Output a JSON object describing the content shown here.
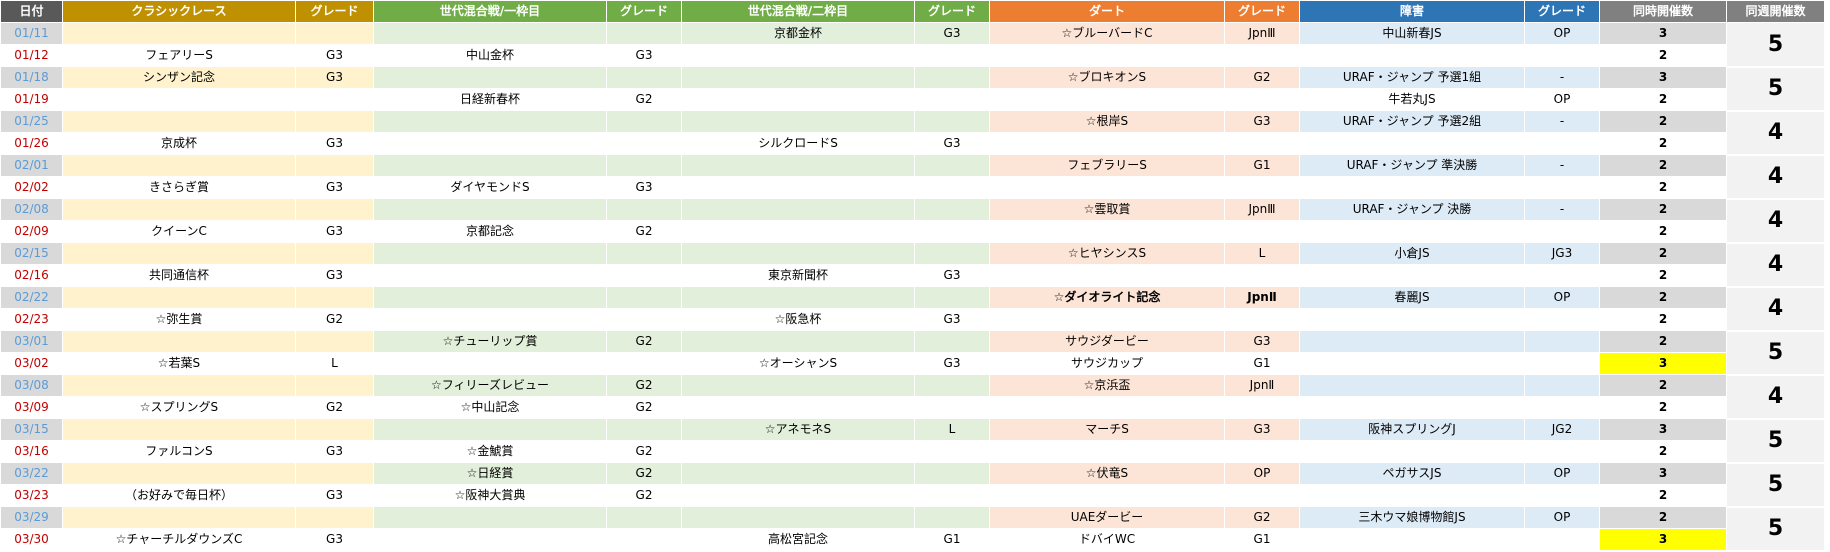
{
  "headers": [
    "日付",
    "クラシックレース",
    "グレード",
    "世代混合戦/一枠目",
    "グレード",
    "世代混合戦/二枠目",
    "グレード",
    "ダート",
    "グレード",
    "障害",
    "グレード",
    "同時開催数",
    "同週開催数"
  ],
  "colors": {
    "header_date": "#595959",
    "header_classic": "#bf9000",
    "header_mixed": "#70ad47",
    "header_dirt": "#ed7d31",
    "header_jump": "#2e75b6",
    "header_count": "#808080",
    "date_sat": "#5b9bd5",
    "date_sun": "#c00000",
    "odd_classic": "#fff2cc",
    "odd_mixed": "#e2efda",
    "odd_dirt": "#fce4d6",
    "odd_jump": "#ddebf7",
    "odd_count": "#d9d9d9",
    "highlight": "#ffff00"
  },
  "rows": [
    {
      "date": "01/11",
      "c1": "",
      "g1": "",
      "c2": "",
      "g2": "",
      "c3": "京都金杯",
      "g3": "G3",
      "c4": "☆ブルーバードC",
      "g4": "JpnⅢ",
      "c5": "中山新春JS",
      "g5": "OP",
      "n": "3"
    },
    {
      "date": "01/12",
      "c1": "フェアリーS",
      "g1": "G3",
      "c2": "中山金杯",
      "g2": "G3",
      "c3": "",
      "g3": "",
      "c4": "",
      "g4": "",
      "c5": "",
      "g5": "",
      "n": "2"
    },
    {
      "date": "01/18",
      "c1": "シンザン記念",
      "g1": "G3",
      "c2": "",
      "g2": "",
      "c3": "",
      "g3": "",
      "c4": "☆ブロキオンS",
      "g4": "G2",
      "c5": "URAF・ジャンプ 予選1組",
      "g5": "-",
      "n": "3"
    },
    {
      "date": "01/19",
      "c1": "",
      "g1": "",
      "c2": "日経新春杯",
      "g2": "G2",
      "c3": "",
      "g3": "",
      "c4": "",
      "g4": "",
      "c5": "牛若丸JS",
      "g5": "OP",
      "n": "2"
    },
    {
      "date": "01/25",
      "c1": "",
      "g1": "",
      "c2": "",
      "g2": "",
      "c3": "",
      "g3": "",
      "c4": "☆根岸S",
      "g4": "G3",
      "c5": "URAF・ジャンプ 予選2組",
      "g5": "-",
      "n": "2"
    },
    {
      "date": "01/26",
      "c1": "京成杯",
      "g1": "G3",
      "c2": "",
      "g2": "",
      "c3": "シルクロードS",
      "g3": "G3",
      "c4": "",
      "g4": "",
      "c5": "",
      "g5": "",
      "n": "2"
    },
    {
      "date": "02/01",
      "c1": "",
      "g1": "",
      "c2": "",
      "g2": "",
      "c3": "",
      "g3": "",
      "c4": "フェブラリーS",
      "g4": "G1",
      "c5": "URAF・ジャンプ 準決勝",
      "g5": "-",
      "n": "2"
    },
    {
      "date": "02/02",
      "c1": "きさらぎ賞",
      "g1": "G3",
      "c2": "ダイヤモンドS",
      "g2": "G3",
      "c3": "",
      "g3": "",
      "c4": "",
      "g4": "",
      "c5": "",
      "g5": "",
      "n": "2"
    },
    {
      "date": "02/08",
      "c1": "",
      "g1": "",
      "c2": "",
      "g2": "",
      "c3": "",
      "g3": "",
      "c4": "☆雲取賞",
      "g4": "JpnⅢ",
      "c5": "URAF・ジャンプ 決勝",
      "g5": "-",
      "n": "2"
    },
    {
      "date": "02/09",
      "c1": "クイーンC",
      "g1": "G3",
      "c2": "京都記念",
      "g2": "G2",
      "c3": "",
      "g3": "",
      "c4": "",
      "g4": "",
      "c5": "",
      "g5": "",
      "n": "2"
    },
    {
      "date": "02/15",
      "c1": "",
      "g1": "",
      "c2": "",
      "g2": "",
      "c3": "",
      "g3": "",
      "c4": "☆ヒヤシンスS",
      "g4": "L",
      "c5": "小倉JS",
      "g5": "JG3",
      "n": "2"
    },
    {
      "date": "02/16",
      "c1": "共同通信杯",
      "g1": "G3",
      "c2": "",
      "g2": "",
      "c3": "東京新聞杯",
      "g3": "G3",
      "c4": "",
      "g4": "",
      "c5": "",
      "g5": "",
      "n": "2"
    },
    {
      "date": "02/22",
      "c1": "",
      "g1": "",
      "c2": "",
      "g2": "",
      "c3": "",
      "g3": "",
      "c4": "☆ダイオライト記念",
      "g4": "JpnⅡ",
      "c5": "春麗JS",
      "g5": "OP",
      "n": "2",
      "bold4": true
    },
    {
      "date": "02/23",
      "c1": "☆弥生賞",
      "g1": "G2",
      "c2": "",
      "g2": "",
      "c3": "☆阪急杯",
      "g3": "G3",
      "c4": "",
      "g4": "",
      "c5": "",
      "g5": "",
      "n": "2"
    },
    {
      "date": "03/01",
      "c1": "",
      "g1": "",
      "c2": "☆チューリップ賞",
      "g2": "G2",
      "c3": "",
      "g3": "",
      "c4": "サウジダービー",
      "g4": "G3",
      "c5": "",
      "g5": "",
      "n": "2"
    },
    {
      "date": "03/02",
      "c1": "☆若葉S",
      "g1": "L",
      "c2": "",
      "g2": "",
      "c3": "☆オーシャンS",
      "g3": "G3",
      "c4": "サウジカップ",
      "g4": "G1",
      "c5": "",
      "g5": "",
      "n": "3",
      "hl": true
    },
    {
      "date": "03/08",
      "c1": "",
      "g1": "",
      "c2": "☆フィリーズレビュー",
      "g2": "G2",
      "c3": "",
      "g3": "",
      "c4": "☆京浜盃",
      "g4": "JpnⅡ",
      "c5": "",
      "g5": "",
      "n": "2"
    },
    {
      "date": "03/09",
      "c1": "☆スプリングS",
      "g1": "G2",
      "c2": "☆中山記念",
      "g2": "G2",
      "c3": "",
      "g3": "",
      "c4": "",
      "g4": "",
      "c5": "",
      "g5": "",
      "n": "2"
    },
    {
      "date": "03/15",
      "c1": "",
      "g1": "",
      "c2": "",
      "g2": "",
      "c3": "☆アネモネS",
      "g3": "L",
      "c4": "マーチS",
      "g4": "G3",
      "c5": "阪神スプリングJ",
      "g5": "JG2",
      "n": "3"
    },
    {
      "date": "03/16",
      "c1": "ファルコンS",
      "g1": "G3",
      "c2": "☆金鯱賞",
      "g2": "G2",
      "c3": "",
      "g3": "",
      "c4": "",
      "g4": "",
      "c5": "",
      "g5": "",
      "n": "2"
    },
    {
      "date": "03/22",
      "c1": "",
      "g1": "",
      "c2": "☆日経賞",
      "g2": "G2",
      "c3": "",
      "g3": "",
      "c4": "☆伏竜S",
      "g4": "OP",
      "c5": "ペガサスJS",
      "g5": "OP",
      "n": "3"
    },
    {
      "date": "03/23",
      "c1": "（お好みで毎日杯）",
      "g1": "G3",
      "c2": "☆阪神大賞典",
      "g2": "G2",
      "c3": "",
      "g3": "",
      "c4": "",
      "g4": "",
      "c5": "",
      "g5": "",
      "n": "2"
    },
    {
      "date": "03/29",
      "c1": "",
      "g1": "",
      "c2": "",
      "g2": "",
      "c3": "",
      "g3": "",
      "c4": "UAEダービー",
      "g4": "G2",
      "c5": "三木ウマ娘博物館JS",
      "g5": "OP",
      "n": "2"
    },
    {
      "date": "03/30",
      "c1": "☆チャーチルダウンズC",
      "g1": "G3",
      "c2": "",
      "g2": "",
      "c3": "高松宮記念",
      "g3": "G1",
      "c4": "ドバイWC",
      "g4": "G1",
      "c5": "",
      "g5": "",
      "n": "3",
      "hl": true
    }
  ],
  "weekly": [
    "5",
    "5",
    "4",
    "4",
    "4",
    "4",
    "4",
    "5",
    "4",
    "5",
    "5",
    "5"
  ]
}
